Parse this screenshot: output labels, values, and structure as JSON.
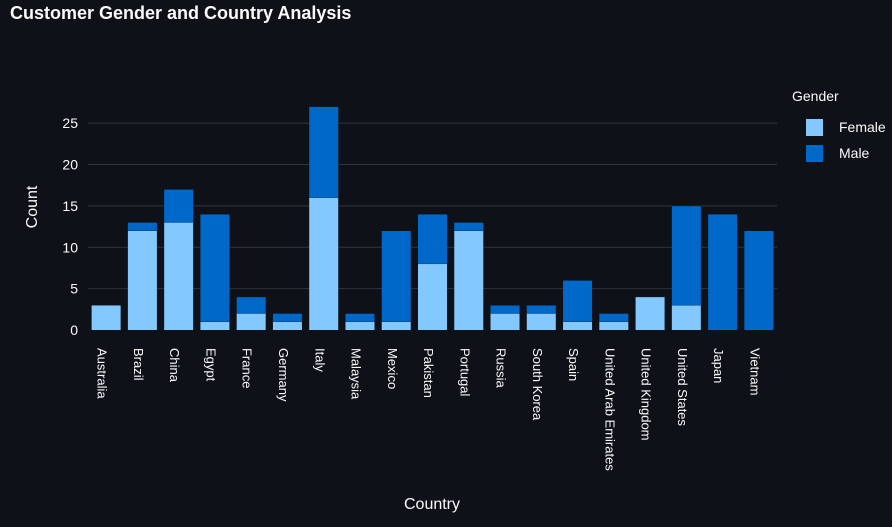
{
  "chart_data": {
    "type": "bar",
    "barmode": "stack",
    "title": "Customer Gender and Country Analysis",
    "xlabel": "Country",
    "ylabel": "Count",
    "ylim": [
      0,
      28.4
    ],
    "yticks": [
      0,
      5,
      10,
      15,
      20,
      25
    ],
    "grid": true,
    "legend_title": "Gender",
    "legend_position": "right",
    "categories": [
      "Australia",
      "Brazil",
      "China",
      "Egypt",
      "France",
      "Germany",
      "Italy",
      "Malaysia",
      "Mexico",
      "Pakistan",
      "Portugal",
      "Russia",
      "South Korea",
      "Spain",
      "United Arab Emirates",
      "United Kingdom",
      "United States",
      "Japan",
      "Vietnam"
    ],
    "series": [
      {
        "name": "Female",
        "color": "#83c9ff",
        "values": [
          3,
          12,
          13,
          1,
          2,
          1,
          16,
          1,
          1,
          8,
          12,
          2,
          2,
          1,
          1,
          4,
          3,
          0,
          0
        ]
      },
      {
        "name": "Male",
        "color": "#0068c9",
        "values": [
          0,
          1,
          4,
          13,
          2,
          1,
          11,
          1,
          11,
          6,
          1,
          1,
          1,
          5,
          1,
          0,
          12,
          14,
          12
        ]
      }
    ]
  }
}
